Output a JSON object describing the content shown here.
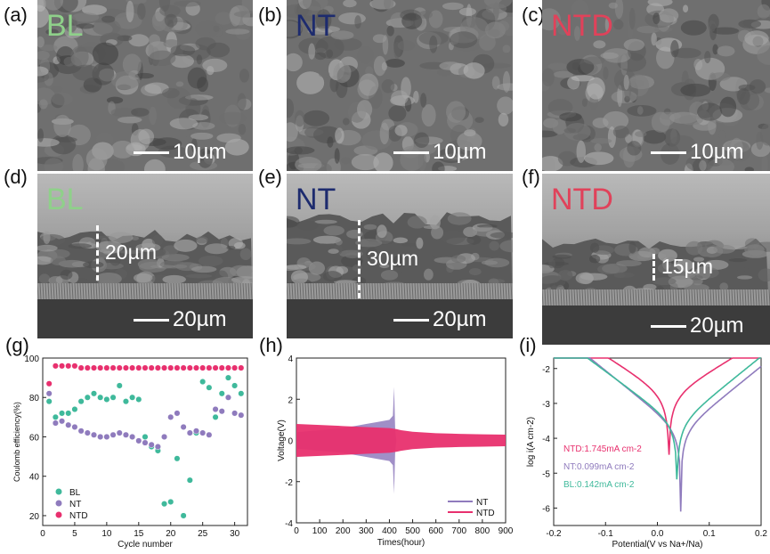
{
  "colors": {
    "bl": "#3fb99b",
    "nt": "#8f7bbd",
    "ntd": "#e8306e",
    "bl_title": "#8fd08a",
    "nt_title": "#1d2b6e",
    "ntd_title": "#e0425a"
  },
  "sem_panels": [
    {
      "label": "(a)",
      "sample": "BL",
      "scale": "10µm",
      "thickness": ""
    },
    {
      "label": "(b)",
      "sample": "NT",
      "scale": "10µm",
      "thickness": ""
    },
    {
      "label": "(c)",
      "sample": "NTD",
      "scale": "10µm",
      "thickness": ""
    },
    {
      "label": "(d)",
      "sample": "BL",
      "scale": "20µm",
      "thickness": "20µm"
    },
    {
      "label": "(e)",
      "sample": "NT",
      "scale": "20µm",
      "thickness": "30µm"
    },
    {
      "label": "(f)",
      "sample": "NTD",
      "scale": "20µm",
      "thickness": "15µm"
    }
  ],
  "plot_labels": {
    "g": "(g)",
    "h": "(h)",
    "i": "(i)"
  },
  "chart_data": [
    {
      "type": "scatter",
      "xlabel": "Cycle number",
      "ylabel": "Coulomb efficiency(%)",
      "xlim": [
        0,
        32
      ],
      "ylim": [
        15,
        100
      ],
      "xticks": [
        "0",
        "5",
        "10",
        "15",
        "20",
        "25",
        "30"
      ],
      "yticks": [
        "20",
        "40",
        "60",
        "80",
        "100"
      ],
      "legend": [
        "BL",
        "NT",
        "NTD"
      ],
      "legend_position": "bottom-left",
      "series": [
        {
          "name": "BL",
          "x": [
            1,
            2,
            3,
            4,
            5,
            6,
            7,
            8,
            9,
            10,
            11,
            12,
            13,
            14,
            15,
            16,
            17,
            18,
            19,
            20,
            21,
            22,
            23,
            24,
            25,
            26,
            27,
            28,
            29,
            30,
            31
          ],
          "y": [
            78,
            70,
            72,
            72,
            74,
            78,
            80,
            82,
            80,
            79,
            80,
            86,
            78,
            80,
            79,
            60,
            55,
            53,
            26,
            27,
            49,
            20,
            38,
            62,
            88,
            85,
            70,
            82,
            90,
            86,
            82
          ]
        },
        {
          "name": "NT",
          "x": [
            1,
            2,
            3,
            4,
            5,
            6,
            7,
            8,
            9,
            10,
            11,
            12,
            13,
            14,
            15,
            16,
            17,
            18,
            19,
            20,
            21,
            22,
            23,
            24,
            25,
            26,
            27,
            28,
            29,
            30,
            31
          ],
          "y": [
            82,
            67,
            68,
            66,
            65,
            63,
            62,
            61,
            60,
            60,
            61,
            62,
            61,
            60,
            58,
            57,
            56,
            55,
            60,
            70,
            72,
            65,
            62,
            63,
            62,
            61,
            74,
            73,
            80,
            72,
            71
          ]
        },
        {
          "name": "NTD",
          "x": [
            1,
            2,
            3,
            4,
            5,
            6,
            7,
            8,
            9,
            10,
            11,
            12,
            13,
            14,
            15,
            16,
            17,
            18,
            19,
            20,
            21,
            22,
            23,
            24,
            25,
            26,
            27,
            28,
            29,
            30,
            31
          ],
          "y": [
            87,
            96,
            96,
            96,
            96,
            95,
            95,
            95,
            95,
            95,
            95,
            95,
            95,
            95,
            95,
            95,
            95,
            95,
            95,
            95,
            95,
            95,
            95,
            95,
            95,
            95,
            95,
            95,
            95,
            95,
            95
          ]
        }
      ]
    },
    {
      "type": "line",
      "xlabel": "Times(hour)",
      "ylabel": "Voltage(V)",
      "xlim": [
        0,
        900
      ],
      "ylim": [
        -4,
        4
      ],
      "xticks": [
        "0",
        "100",
        "200",
        "300",
        "400",
        "500",
        "600",
        "700",
        "800",
        "900"
      ],
      "yticks": [
        "-4",
        "-2",
        "0",
        "2",
        "4"
      ],
      "legend": [
        "NT",
        "NTD"
      ],
      "legend_position": "bottom-right",
      "series": [
        {
          "name": "NT",
          "x": [
            0,
            50,
            100,
            150,
            200,
            250,
            300,
            350,
            400,
            415,
            420,
            425,
            430
          ],
          "upper": [
            0.4,
            0.45,
            0.5,
            0.55,
            0.6,
            0.7,
            0.8,
            0.9,
            1.0,
            1.2,
            2.6,
            0.5,
            0.0
          ],
          "lower": [
            -0.4,
            -0.45,
            -0.5,
            -0.55,
            -0.6,
            -0.7,
            -0.8,
            -0.9,
            -1.0,
            -1.2,
            -2.6,
            -0.5,
            0.0
          ]
        },
        {
          "name": "NTD",
          "x": [
            0,
            100,
            200,
            300,
            400,
            430,
            450,
            500,
            600,
            700,
            800,
            900
          ],
          "upper": [
            0.8,
            0.75,
            0.7,
            0.65,
            0.6,
            0.55,
            0.5,
            0.42,
            0.35,
            0.32,
            0.3,
            0.28
          ],
          "lower": [
            -0.8,
            -0.75,
            -0.7,
            -0.65,
            -0.6,
            -0.55,
            -0.5,
            -0.42,
            -0.35,
            -0.32,
            -0.3,
            -0.28
          ]
        }
      ]
    },
    {
      "type": "line",
      "xlabel": "Potential(V vs Na+/Na)",
      "ylabel": "log i(A cm-2)",
      "xlim": [
        -0.2,
        0.2
      ],
      "ylim": [
        -6.5,
        -1.7
      ],
      "xticks": [
        "-0.2",
        "-0.1",
        "0.0",
        "0.1",
        "0.2"
      ],
      "yticks": [
        "-2",
        "-3",
        "-4",
        "-5",
        "-6"
      ],
      "annotations": [
        "NTD:1.745mA cm-2",
        "NT:0.099mA cm-2",
        "BL:0.142mA cm-2"
      ],
      "series": [
        {
          "name": "NTD",
          "ecorr": 0.022,
          "ilim": -4.7,
          "ia": -2.8,
          "ba": 9.0,
          "bc": 9.5
        },
        {
          "name": "NT",
          "ecorr": 0.045,
          "ilim": -6.1,
          "ia": -3.8,
          "ba": 12.0,
          "bc": 12.0
        },
        {
          "name": "BL",
          "ecorr": 0.038,
          "ilim": -5.8,
          "ia": -3.6,
          "ba": 12.0,
          "bc": 11.0
        }
      ]
    }
  ]
}
